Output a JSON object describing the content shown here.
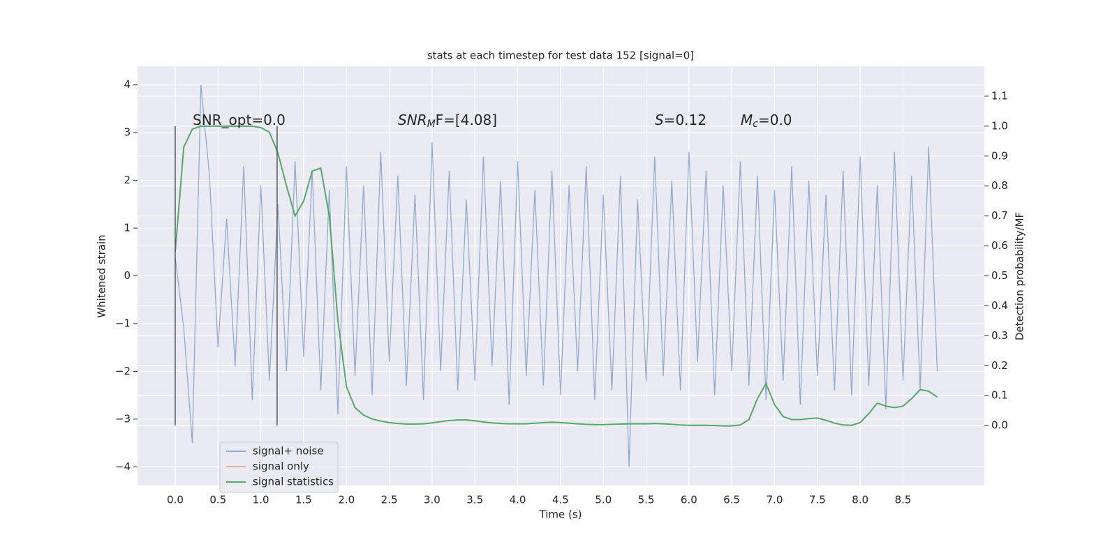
{
  "chart_data": {
    "type": "line",
    "title": "stats at each timestep for test data 152 [signal=0]",
    "x_label": "Time (s)",
    "y_label": "Whitened strain",
    "y2_label": "Detection probability/MF",
    "x": [
      0.0,
      0.1,
      0.2,
      0.3,
      0.4,
      0.5,
      0.6,
      0.7,
      0.8,
      0.9,
      1.0,
      1.1,
      1.2,
      1.3,
      1.4,
      1.5,
      1.6,
      1.7,
      1.8,
      1.9,
      2.0,
      2.1,
      2.2,
      2.3,
      2.4,
      2.5,
      2.6,
      2.7,
      2.8,
      2.9,
      3.0,
      3.1,
      3.2,
      3.3,
      3.4,
      3.5,
      3.6,
      3.7,
      3.8,
      3.9,
      4.0,
      4.1,
      4.2,
      4.3,
      4.4,
      4.5,
      4.6,
      4.7,
      4.8,
      4.9,
      5.0,
      5.1,
      5.2,
      5.3,
      5.4,
      5.5,
      5.6,
      5.7,
      5.8,
      5.9,
      6.0,
      6.1,
      6.2,
      6.3,
      6.4,
      6.5,
      6.6,
      6.7,
      6.8,
      6.9,
      7.0,
      7.1,
      7.2,
      7.3,
      7.4,
      7.5,
      7.6,
      7.7,
      7.8,
      7.9,
      8.0,
      8.1,
      8.2,
      8.3,
      8.4,
      8.5,
      8.6,
      8.7,
      8.8,
      8.9
    ],
    "series": [
      {
        "name": "signal+ noise",
        "color": "#4c72b0",
        "axis": "y",
        "values": [
          0.4,
          -1.1,
          -3.5,
          4.0,
          2.1,
          -1.5,
          1.2,
          -1.9,
          2.3,
          -2.6,
          1.9,
          -2.2,
          1.5,
          -2.0,
          2.4,
          -1.7,
          2.2,
          -2.4,
          1.8,
          -2.9,
          2.3,
          -2.1,
          1.9,
          -2.5,
          2.6,
          -1.8,
          2.1,
          -2.3,
          1.7,
          -2.6,
          2.8,
          -2.0,
          2.2,
          -2.4,
          1.6,
          -2.2,
          2.5,
          -1.9,
          2.0,
          -2.7,
          2.4,
          -2.1,
          1.8,
          -2.3,
          2.2,
          -2.5,
          1.9,
          -2.0,
          2.3,
          -2.6,
          1.7,
          -2.4,
          2.1,
          -4.0,
          1.6,
          -2.2,
          2.5,
          -2.1,
          2.0,
          -2.4,
          2.6,
          -1.8,
          2.2,
          -2.5,
          1.9,
          -2.0,
          2.4,
          -2.3,
          2.1,
          -2.6,
          1.8,
          -2.2,
          2.3,
          -2.7,
          2.0,
          -2.1,
          1.7,
          -2.4,
          2.2,
          -2.5,
          2.5,
          -2.3,
          1.9,
          -2.8,
          2.6,
          -2.2,
          2.1,
          -2.4,
          2.7,
          -2.0
        ]
      },
      {
        "name": "signal only",
        "color": "#dd8452",
        "axis": "y",
        "values": [
          null,
          null,
          null,
          null,
          null,
          null,
          null,
          null,
          null,
          null,
          null,
          null,
          null,
          null,
          null,
          null,
          null,
          null,
          null,
          null,
          null,
          null,
          null,
          null,
          null,
          null,
          null,
          null,
          null,
          null,
          null,
          null,
          null,
          null,
          null,
          null,
          null,
          null,
          null,
          null,
          null,
          null,
          null,
          null,
          null,
          null,
          null,
          null,
          null,
          null,
          null,
          null,
          null,
          null,
          null,
          null,
          null,
          null,
          null,
          null,
          null,
          null,
          null,
          null,
          null,
          null,
          null,
          null,
          null,
          null,
          null,
          null,
          null,
          null,
          null,
          null,
          null,
          null,
          null,
          null,
          null,
          null,
          null,
          null,
          null,
          null,
          null,
          null,
          null,
          null
        ]
      },
      {
        "name": "signal statistics",
        "color": "#55a868",
        "axis": "y2",
        "values": [
          0.58,
          0.93,
          0.99,
          1.0,
          1.0,
          1.0,
          1.0,
          1.0,
          1.0,
          1.0,
          0.995,
          0.98,
          0.91,
          0.8,
          0.7,
          0.75,
          0.85,
          0.86,
          0.7,
          0.35,
          0.13,
          0.06,
          0.035,
          0.022,
          0.015,
          0.01,
          0.007,
          0.005,
          0.005,
          0.006,
          0.009,
          0.013,
          0.017,
          0.019,
          0.019,
          0.016,
          0.012,
          0.009,
          0.007,
          0.006,
          0.006,
          0.006,
          0.008,
          0.01,
          0.011,
          0.01,
          0.008,
          0.006,
          0.004,
          0.003,
          0.003,
          0.004,
          0.005,
          0.006,
          0.006,
          0.006,
          0.007,
          0.006,
          0.004,
          0.002,
          0.001,
          0.001,
          0.001,
          0.0,
          -0.001,
          -0.001,
          0.002,
          0.02,
          0.09,
          0.14,
          0.07,
          0.03,
          0.02,
          0.02,
          0.023,
          0.025,
          0.018,
          0.008,
          0.002,
          0.001,
          0.01,
          0.04,
          0.075,
          0.065,
          0.06,
          0.065,
          0.09,
          0.12,
          0.115,
          0.095
        ]
      }
    ],
    "vlines": {
      "x": [
        0,
        1.19
      ],
      "ymin": 0,
      "ymax": 1,
      "axis": "y2",
      "color": "#555555"
    },
    "annotations": [
      {
        "main": "SNR_opt=0.0"
      },
      {
        "main": "SNR",
        "sub": "M",
        "rest": "F=[4.08]"
      },
      {
        "main": "S",
        "rest": "=0.12"
      },
      {
        "main": "M",
        "sub": "c",
        "rest": "=0.0"
      }
    ],
    "xlim": [
      -0.44,
      9.45
    ],
    "xticks": [
      {
        "value": 0,
        "label": "0.0"
      },
      0.5,
      {
        "value": 1,
        "label": "1.0"
      },
      1.5,
      {
        "value": 2,
        "label": "2.0"
      },
      2.5,
      {
        "value": 3,
        "label": "3.0"
      },
      3.5,
      {
        "value": 4,
        "label": "4.0"
      },
      4.5,
      {
        "value": 5,
        "label": "5.0"
      },
      5.5,
      {
        "value": 6,
        "label": "6.0"
      },
      6.5,
      {
        "value": 7,
        "label": "7.0"
      },
      7.5,
      {
        "value": 8,
        "label": "8.0"
      },
      8.5
    ],
    "ylim": [
      -4.39,
      4.39
    ],
    "yticks": [
      {
        "value": -4,
        "label": "−4"
      },
      {
        "value": -3,
        "label": "−3"
      },
      {
        "value": -2,
        "label": "−2"
      },
      {
        "value": -1,
        "label": "−1"
      },
      0,
      1,
      2,
      3,
      4
    ],
    "y2lim": [
      -0.2,
      1.2
    ],
    "y2ticks": [
      {
        "value": 0,
        "label": "0.0"
      },
      0.1,
      0.2,
      0.3,
      0.4,
      0.5,
      0.6,
      0.7,
      0.8,
      0.9,
      {
        "value": 1,
        "label": "1.0"
      },
      1.1
    ],
    "grid": true,
    "legend": "lower left",
    "background": "#eaeaf2"
  }
}
